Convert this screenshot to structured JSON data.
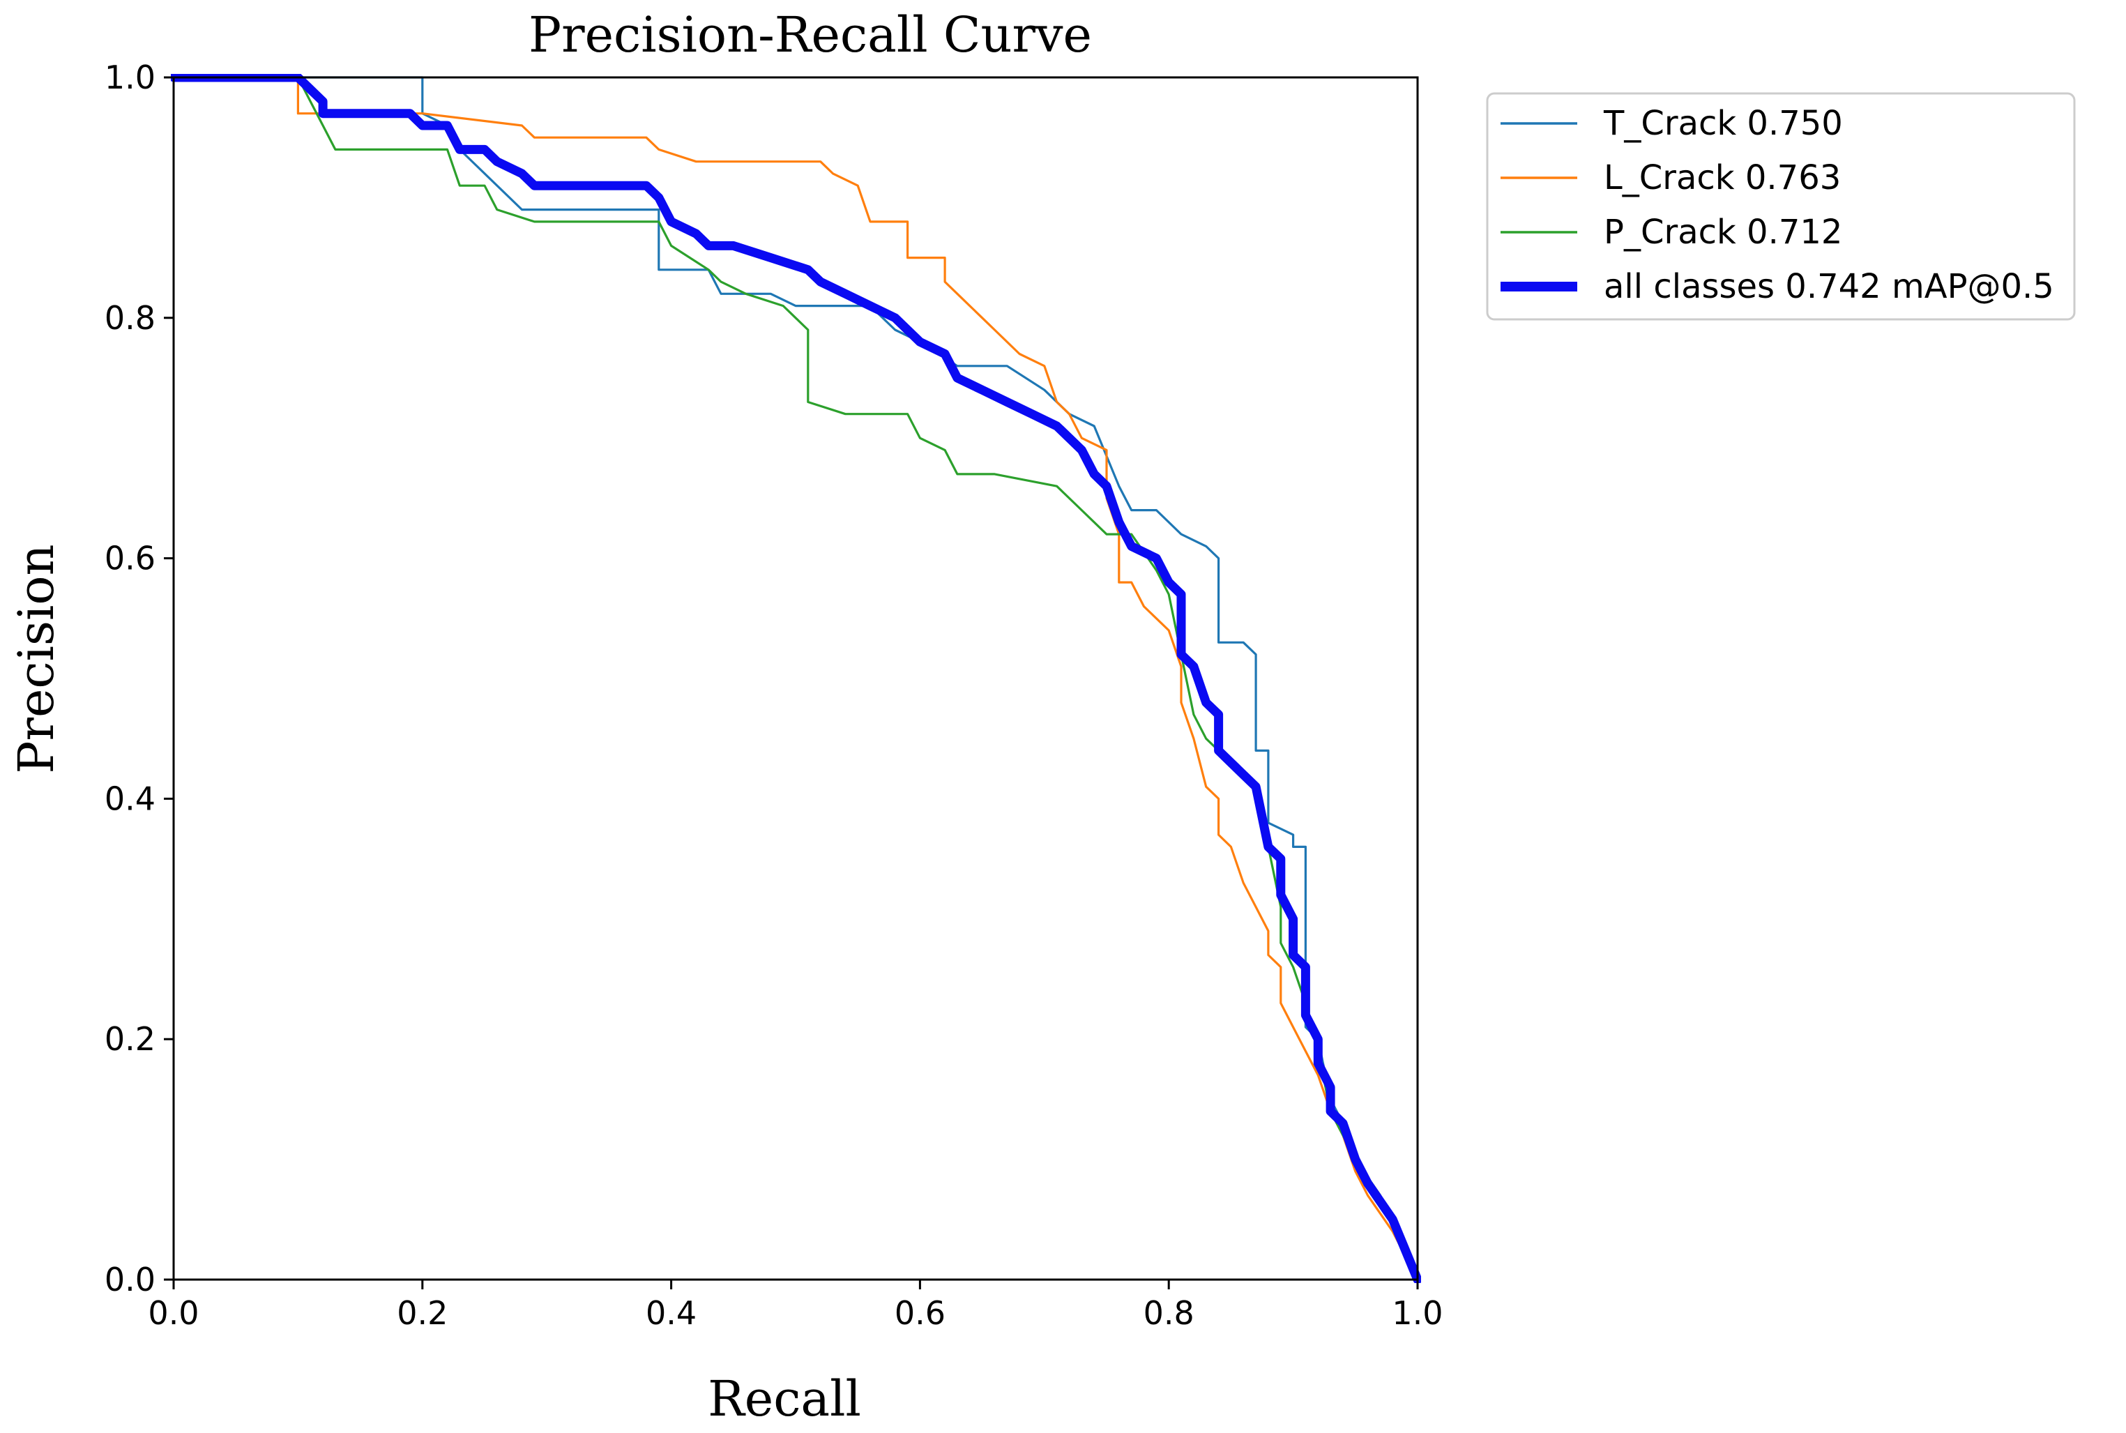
{
  "chart_data": {
    "type": "line",
    "title": "Precision-Recall Curve",
    "xlabel": "Recall",
    "ylabel": "Precision",
    "xlim": [
      0,
      1
    ],
    "ylim": [
      0,
      1
    ],
    "xticks": [
      "0.0",
      "0.2",
      "0.4",
      "0.6",
      "0.8",
      "1.0"
    ],
    "yticks": [
      "0.0",
      "0.2",
      "0.4",
      "0.6",
      "0.8",
      "1.0"
    ],
    "legend_position": "outside-top-right",
    "series": [
      {
        "name": "T_Crack 0.750",
        "color": "#1f77b4",
        "line": "thin",
        "points": [
          [
            0,
            1
          ],
          [
            0.2,
            1
          ],
          [
            0.2,
            0.97
          ],
          [
            0.22,
            0.96
          ],
          [
            0.23,
            0.94
          ],
          [
            0.25,
            0.92
          ],
          [
            0.27,
            0.9
          ],
          [
            0.28,
            0.89
          ],
          [
            0.33,
            0.89
          ],
          [
            0.39,
            0.89
          ],
          [
            0.39,
            0.84
          ],
          [
            0.43,
            0.84
          ],
          [
            0.44,
            0.82
          ],
          [
            0.48,
            0.82
          ],
          [
            0.5,
            0.81
          ],
          [
            0.52,
            0.81
          ],
          [
            0.56,
            0.81
          ],
          [
            0.58,
            0.79
          ],
          [
            0.6,
            0.78
          ],
          [
            0.63,
            0.76
          ],
          [
            0.67,
            0.76
          ],
          [
            0.7,
            0.74
          ],
          [
            0.72,
            0.72
          ],
          [
            0.74,
            0.71
          ],
          [
            0.76,
            0.66
          ],
          [
            0.77,
            0.64
          ],
          [
            0.79,
            0.64
          ],
          [
            0.81,
            0.62
          ],
          [
            0.83,
            0.61
          ],
          [
            0.84,
            0.6
          ],
          [
            0.84,
            0.53
          ],
          [
            0.86,
            0.53
          ],
          [
            0.87,
            0.52
          ],
          [
            0.87,
            0.44
          ],
          [
            0.88,
            0.44
          ],
          [
            0.88,
            0.38
          ],
          [
            0.9,
            0.37
          ],
          [
            0.9,
            0.36
          ],
          [
            0.91,
            0.36
          ],
          [
            0.91,
            0.21
          ],
          [
            0.92,
            0.2
          ],
          [
            0.93,
            0.15
          ],
          [
            0.94,
            0.13
          ],
          [
            0.95,
            0.1
          ],
          [
            0.97,
            0.07
          ],
          [
            1.0,
            0.0
          ]
        ]
      },
      {
        "name": "L_Crack 0.763",
        "color": "#ff7f0e",
        "line": "thin",
        "points": [
          [
            0,
            1
          ],
          [
            0.1,
            1
          ],
          [
            0.1,
            0.97
          ],
          [
            0.12,
            0.97
          ],
          [
            0.2,
            0.97
          ],
          [
            0.28,
            0.96
          ],
          [
            0.29,
            0.95
          ],
          [
            0.38,
            0.95
          ],
          [
            0.39,
            0.94
          ],
          [
            0.42,
            0.93
          ],
          [
            0.48,
            0.93
          ],
          [
            0.52,
            0.93
          ],
          [
            0.53,
            0.92
          ],
          [
            0.55,
            0.91
          ],
          [
            0.56,
            0.88
          ],
          [
            0.59,
            0.88
          ],
          [
            0.59,
            0.85
          ],
          [
            0.62,
            0.85
          ],
          [
            0.62,
            0.83
          ],
          [
            0.63,
            0.82
          ],
          [
            0.65,
            0.8
          ],
          [
            0.66,
            0.79
          ],
          [
            0.68,
            0.77
          ],
          [
            0.7,
            0.76
          ],
          [
            0.71,
            0.73
          ],
          [
            0.72,
            0.72
          ],
          [
            0.73,
            0.7
          ],
          [
            0.75,
            0.69
          ],
          [
            0.75,
            0.65
          ],
          [
            0.76,
            0.62
          ],
          [
            0.76,
            0.58
          ],
          [
            0.77,
            0.58
          ],
          [
            0.78,
            0.56
          ],
          [
            0.8,
            0.54
          ],
          [
            0.81,
            0.51
          ],
          [
            0.81,
            0.48
          ],
          [
            0.82,
            0.45
          ],
          [
            0.83,
            0.41
          ],
          [
            0.84,
            0.4
          ],
          [
            0.84,
            0.37
          ],
          [
            0.85,
            0.36
          ],
          [
            0.86,
            0.33
          ],
          [
            0.87,
            0.31
          ],
          [
            0.88,
            0.29
          ],
          [
            0.88,
            0.27
          ],
          [
            0.89,
            0.26
          ],
          [
            0.89,
            0.23
          ],
          [
            0.9,
            0.21
          ],
          [
            0.91,
            0.19
          ],
          [
            0.92,
            0.17
          ],
          [
            0.93,
            0.14
          ],
          [
            0.94,
            0.12
          ],
          [
            0.95,
            0.09
          ],
          [
            0.96,
            0.07
          ],
          [
            0.98,
            0.04
          ],
          [
            1.0,
            0.0
          ]
        ]
      },
      {
        "name": "P_Crack 0.712",
        "color": "#2ca02c",
        "line": "thin",
        "points": [
          [
            0,
            1
          ],
          [
            0.1,
            1
          ],
          [
            0.11,
            0.98
          ],
          [
            0.12,
            0.96
          ],
          [
            0.13,
            0.94
          ],
          [
            0.22,
            0.94
          ],
          [
            0.23,
            0.91
          ],
          [
            0.25,
            0.91
          ],
          [
            0.26,
            0.89
          ],
          [
            0.29,
            0.88
          ],
          [
            0.35,
            0.88
          ],
          [
            0.39,
            0.88
          ],
          [
            0.4,
            0.86
          ],
          [
            0.43,
            0.84
          ],
          [
            0.44,
            0.83
          ],
          [
            0.46,
            0.82
          ],
          [
            0.49,
            0.81
          ],
          [
            0.5,
            0.8
          ],
          [
            0.51,
            0.79
          ],
          [
            0.51,
            0.73
          ],
          [
            0.54,
            0.72
          ],
          [
            0.59,
            0.72
          ],
          [
            0.6,
            0.7
          ],
          [
            0.62,
            0.69
          ],
          [
            0.63,
            0.67
          ],
          [
            0.66,
            0.67
          ],
          [
            0.71,
            0.66
          ],
          [
            0.73,
            0.64
          ],
          [
            0.75,
            0.62
          ],
          [
            0.77,
            0.62
          ],
          [
            0.79,
            0.59
          ],
          [
            0.8,
            0.57
          ],
          [
            0.81,
            0.52
          ],
          [
            0.82,
            0.47
          ],
          [
            0.83,
            0.45
          ],
          [
            0.84,
            0.44
          ],
          [
            0.85,
            0.43
          ],
          [
            0.86,
            0.42
          ],
          [
            0.87,
            0.41
          ],
          [
            0.88,
            0.36
          ],
          [
            0.89,
            0.31
          ],
          [
            0.89,
            0.28
          ],
          [
            0.9,
            0.26
          ],
          [
            0.91,
            0.23
          ],
          [
            0.92,
            0.19
          ],
          [
            0.93,
            0.14
          ],
          [
            0.94,
            0.12
          ],
          [
            0.95,
            0.1
          ],
          [
            0.97,
            0.07
          ],
          [
            1.0,
            0.0
          ]
        ]
      },
      {
        "name": "all classes 0.742 mAP@0.5",
        "color": "#0a0af2",
        "line": "thick",
        "points": [
          [
            0,
            1
          ],
          [
            0.1,
            1
          ],
          [
            0.11,
            0.99
          ],
          [
            0.12,
            0.98
          ],
          [
            0.12,
            0.97
          ],
          [
            0.19,
            0.97
          ],
          [
            0.2,
            0.96
          ],
          [
            0.22,
            0.96
          ],
          [
            0.23,
            0.94
          ],
          [
            0.25,
            0.94
          ],
          [
            0.26,
            0.93
          ],
          [
            0.28,
            0.92
          ],
          [
            0.29,
            0.91
          ],
          [
            0.3,
            0.91
          ],
          [
            0.36,
            0.91
          ],
          [
            0.38,
            0.91
          ],
          [
            0.39,
            0.9
          ],
          [
            0.4,
            0.88
          ],
          [
            0.42,
            0.87
          ],
          [
            0.43,
            0.86
          ],
          [
            0.45,
            0.86
          ],
          [
            0.48,
            0.85
          ],
          [
            0.51,
            0.84
          ],
          [
            0.52,
            0.83
          ],
          [
            0.54,
            0.82
          ],
          [
            0.56,
            0.81
          ],
          [
            0.58,
            0.8
          ],
          [
            0.6,
            0.78
          ],
          [
            0.62,
            0.77
          ],
          [
            0.63,
            0.75
          ],
          [
            0.65,
            0.74
          ],
          [
            0.67,
            0.73
          ],
          [
            0.69,
            0.72
          ],
          [
            0.71,
            0.71
          ],
          [
            0.72,
            0.7
          ],
          [
            0.73,
            0.69
          ],
          [
            0.74,
            0.67
          ],
          [
            0.75,
            0.66
          ],
          [
            0.76,
            0.63
          ],
          [
            0.77,
            0.61
          ],
          [
            0.79,
            0.6
          ],
          [
            0.8,
            0.58
          ],
          [
            0.81,
            0.57
          ],
          [
            0.81,
            0.52
          ],
          [
            0.82,
            0.51
          ],
          [
            0.83,
            0.48
          ],
          [
            0.84,
            0.47
          ],
          [
            0.84,
            0.44
          ],
          [
            0.85,
            0.43
          ],
          [
            0.86,
            0.42
          ],
          [
            0.87,
            0.41
          ],
          [
            0.88,
            0.36
          ],
          [
            0.89,
            0.35
          ],
          [
            0.89,
            0.32
          ],
          [
            0.9,
            0.3
          ],
          [
            0.9,
            0.27
          ],
          [
            0.91,
            0.26
          ],
          [
            0.91,
            0.22
          ],
          [
            0.92,
            0.2
          ],
          [
            0.92,
            0.18
          ],
          [
            0.93,
            0.16
          ],
          [
            0.93,
            0.14
          ],
          [
            0.94,
            0.13
          ],
          [
            0.95,
            0.1
          ],
          [
            0.96,
            0.08
          ],
          [
            0.98,
            0.05
          ],
          [
            1.0,
            0.0
          ]
        ]
      }
    ]
  }
}
